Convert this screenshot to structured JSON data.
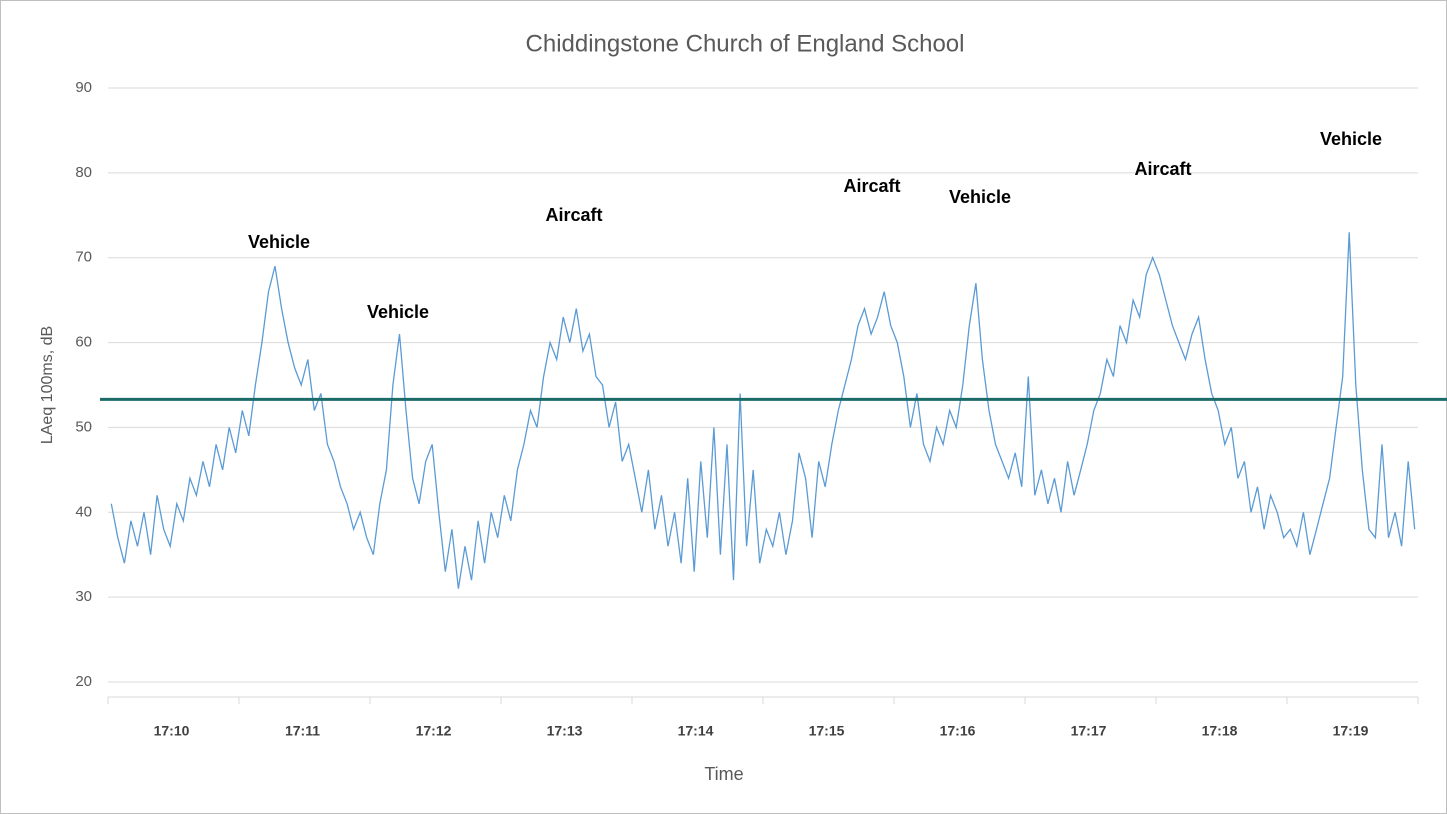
{
  "chart_data": {
    "type": "line",
    "title": "Chiddingstone Church of England School",
    "xlabel": "Time",
    "ylabel": "LAeq 100ms, dB",
    "ylim": [
      20,
      90
    ],
    "yticks": [
      20,
      30,
      40,
      50,
      60,
      70,
      80,
      90
    ],
    "grid": true,
    "categories": [
      null,
      null,
      null,
      null,
      null,
      null,
      null,
      null,
      null,
      null,
      "17:10",
      null,
      null,
      null,
      null,
      null,
      null,
      null,
      null,
      null,
      null,
      null,
      null,
      null,
      null,
      null,
      null,
      null,
      null,
      null,
      "17:11",
      null,
      null,
      null,
      null,
      null,
      null,
      null,
      null,
      null,
      null,
      null,
      null,
      null,
      null,
      null,
      null,
      null,
      null,
      null,
      "17:12",
      null,
      null,
      null,
      null,
      null,
      null,
      null,
      null,
      null,
      null,
      null,
      null,
      null,
      null,
      null,
      null,
      null,
      null,
      null,
      "17:13",
      null,
      null,
      null,
      null,
      null,
      null,
      null,
      null,
      null,
      null,
      null,
      null,
      null,
      null,
      null,
      null,
      null,
      null,
      null,
      "17:14",
      null,
      null,
      null,
      null,
      null,
      null,
      null,
      null,
      null,
      null,
      null,
      null,
      null,
      null,
      null,
      null,
      null,
      null,
      null,
      "17:15",
      null,
      null,
      null,
      null,
      null,
      null,
      null,
      null,
      null,
      null,
      null,
      null,
      null,
      null,
      null,
      null,
      null,
      null,
      null,
      "17:16",
      null,
      null,
      null,
      null,
      null,
      null,
      null,
      null,
      null,
      null,
      null,
      null,
      null,
      null,
      null,
      null,
      null,
      null,
      null,
      "17:17",
      null,
      null,
      null,
      null,
      null,
      null,
      null,
      null,
      null,
      null,
      null,
      null,
      null,
      null,
      null,
      null,
      null,
      null,
      null,
      "17:18",
      null,
      null,
      null,
      null,
      null,
      null,
      null,
      null,
      null,
      null,
      null,
      null,
      null,
      null,
      null,
      null,
      null,
      null,
      null,
      "17:19",
      null,
      null,
      null,
      null,
      null,
      null,
      null,
      null,
      null
    ],
    "series": [
      {
        "color": "#5b9bd5",
        "values": [
          41,
          37,
          34,
          39,
          36,
          40,
          35,
          42,
          38,
          36,
          41,
          39,
          44,
          42,
          46,
          43,
          48,
          45,
          50,
          47,
          52,
          49,
          55,
          60,
          66,
          69,
          64,
          60,
          57,
          55,
          58,
          52,
          54,
          48,
          46,
          43,
          41,
          38,
          40,
          37,
          35,
          41,
          45,
          55,
          61,
          52,
          44,
          41,
          46,
          48,
          40,
          33,
          38,
          31,
          36,
          32,
          39,
          34,
          40,
          37,
          42,
          39,
          45,
          48,
          52,
          50,
          56,
          60,
          58,
          63,
          60,
          64,
          59,
          61,
          56,
          55,
          50,
          53,
          46,
          48,
          44,
          40,
          45,
          38,
          42,
          36,
          40,
          34,
          44,
          33,
          46,
          37,
          50,
          35,
          48,
          32,
          54,
          36,
          45,
          34,
          38,
          36,
          40,
          35,
          39,
          47,
          44,
          37,
          46,
          43,
          48,
          52,
          55,
          58,
          62,
          64,
          61,
          63,
          66,
          62,
          60,
          56,
          50,
          54,
          48,
          46,
          50,
          48,
          52,
          50,
          55,
          62,
          67,
          58,
          52,
          48,
          46,
          44,
          47,
          43,
          56,
          42,
          45,
          41,
          44,
          40,
          46,
          42,
          45,
          48,
          52,
          54,
          58,
          56,
          62,
          60,
          65,
          63,
          68,
          70,
          68,
          65,
          62,
          60,
          58,
          61,
          63,
          58,
          54,
          52,
          48,
          50,
          44,
          46,
          40,
          43,
          38,
          42,
          40,
          37,
          38,
          36,
          40,
          35,
          38,
          41,
          44,
          50,
          56,
          73,
          55,
          45,
          38,
          37,
          48,
          37,
          40,
          36,
          46,
          38
        ]
      }
    ],
    "reference_line": {
      "value": 53.3,
      "color": "#1b6b69"
    },
    "annotations": [
      "Vehicle",
      "Vehicle",
      "Aircaft",
      "Aircaft",
      "Vehicle",
      "Aircaft",
      "Vehicle"
    ]
  }
}
